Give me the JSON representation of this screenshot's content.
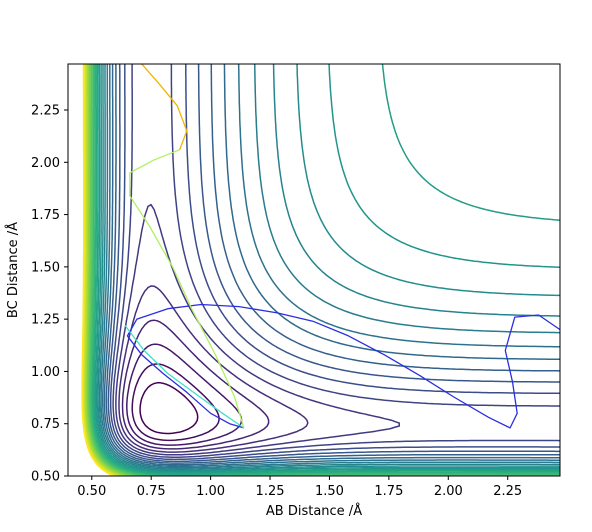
{
  "chart_data": {
    "type": "contour",
    "title": "",
    "xlabel": "AB Distance /Å",
    "ylabel": "BC Distance /Å",
    "xlim": [
      0.4,
      2.47
    ],
    "ylim": [
      0.5,
      2.47
    ],
    "xticks": [
      0.5,
      0.75,
      1.0,
      1.25,
      1.5,
      1.75,
      2.0,
      2.25
    ],
    "xtick_labels": [
      "0.50",
      "0.75",
      "1.00",
      "1.25",
      "1.50",
      "1.75",
      "2.00",
      "2.25"
    ],
    "yticks": [
      0.5,
      0.75,
      1.0,
      1.25,
      1.5,
      1.75,
      2.0,
      2.25
    ],
    "ytick_labels": [
      "0.50",
      "0.75",
      "1.00",
      "1.25",
      "1.50",
      "1.75",
      "2.00",
      "2.25"
    ],
    "grid": false,
    "colormap": "viridis",
    "contour_levels": 30,
    "trajectories": [
      {
        "color": "#2a2fe0",
        "points": [
          [
            2.47,
            1.2
          ],
          [
            2.38,
            1.27
          ],
          [
            2.28,
            1.26
          ],
          [
            2.24,
            1.1
          ],
          [
            2.27,
            0.95
          ],
          [
            2.29,
            0.8
          ],
          [
            2.26,
            0.73
          ],
          [
            2.17,
            0.78
          ],
          [
            2.02,
            0.88
          ],
          [
            1.88,
            0.98
          ],
          [
            1.73,
            1.08
          ],
          [
            1.58,
            1.17
          ],
          [
            1.43,
            1.24
          ],
          [
            1.28,
            1.28
          ],
          [
            1.12,
            1.31
          ],
          [
            0.96,
            1.32
          ],
          [
            0.82,
            1.3
          ],
          [
            0.69,
            1.25
          ],
          [
            0.65,
            1.17
          ],
          [
            0.71,
            1.08
          ],
          [
            0.8,
            0.99
          ],
          [
            0.9,
            0.9
          ],
          [
            1.0,
            0.8
          ],
          [
            1.08,
            0.75
          ],
          [
            1.14,
            0.73
          ]
        ]
      },
      {
        "color": "#40e0c8",
        "points": [
          [
            0.64,
            1.22
          ],
          [
            0.72,
            1.1
          ],
          [
            0.82,
            0.99
          ],
          [
            0.94,
            0.89
          ],
          [
            1.05,
            0.8
          ],
          [
            1.14,
            0.73
          ]
        ]
      },
      {
        "color": "#b0f060",
        "points": [
          [
            1.14,
            0.73
          ],
          [
            1.1,
            0.88
          ],
          [
            1.02,
            1.08
          ],
          [
            0.92,
            1.3
          ],
          [
            0.84,
            1.5
          ],
          [
            0.74,
            1.7
          ],
          [
            0.66,
            1.84
          ],
          [
            0.66,
            1.95
          ],
          [
            0.76,
            2.01
          ],
          [
            0.87,
            2.06
          ]
        ]
      },
      {
        "color": "#f0b400",
        "points": [
          [
            0.87,
            2.06
          ],
          [
            0.9,
            2.15
          ],
          [
            0.86,
            2.27
          ],
          [
            0.78,
            2.38
          ],
          [
            0.71,
            2.47
          ]
        ]
      }
    ]
  }
}
